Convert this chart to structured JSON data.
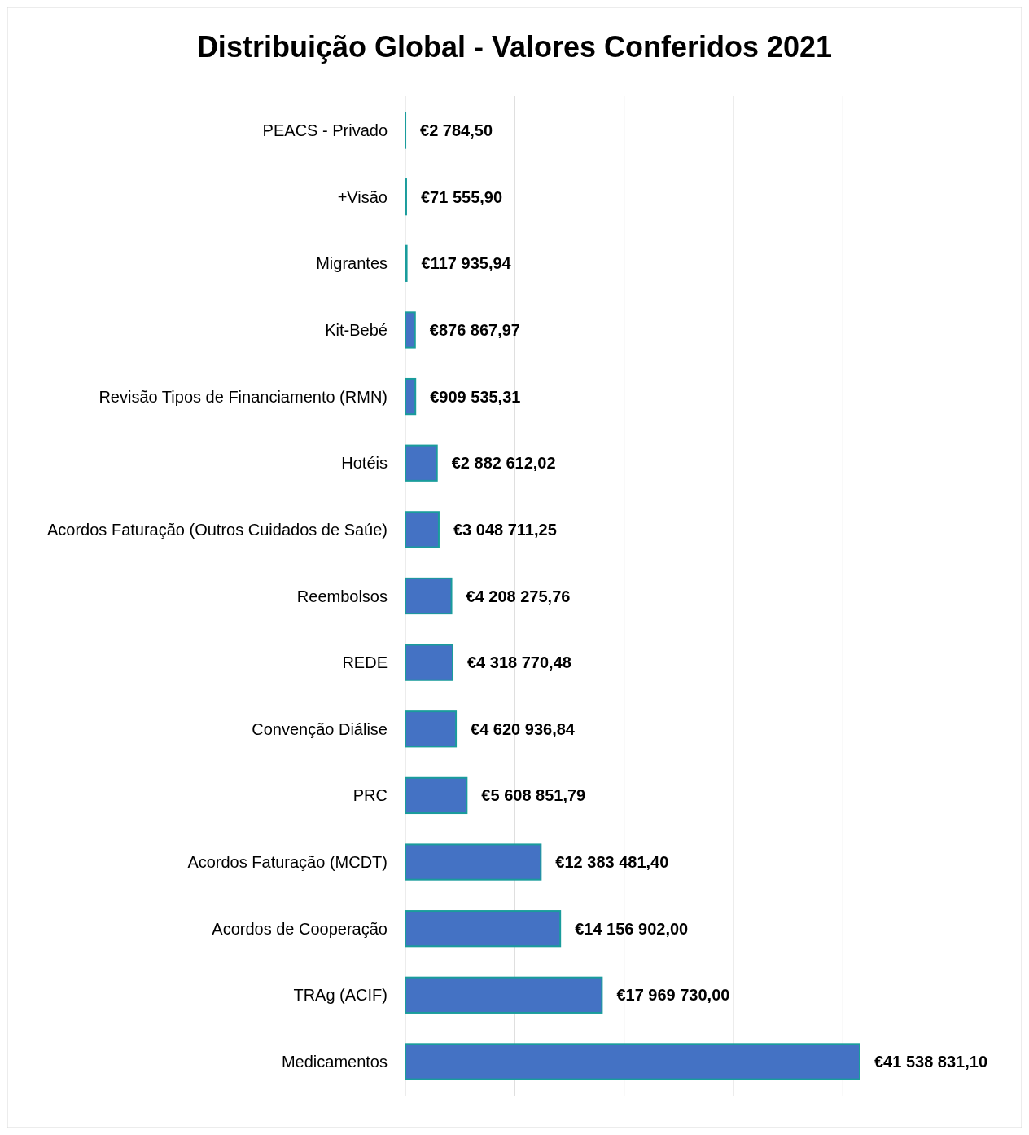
{
  "chart_data": {
    "type": "bar",
    "orientation": "horizontal",
    "title": "Distribuição Global - Valores Conferidos 2021",
    "categories": [
      "PEACS - Privado",
      "+Visão",
      "Migrantes",
      "Kit-Bebé",
      "Revisão Tipos de Financiamento (RMN)",
      "Hotéis",
      "Acordos Faturação (Outros Cuidados de Saúe)",
      "Reembolsos",
      "REDE",
      "Convenção Diálise",
      "PRC",
      "Acordos Faturação (MCDT)",
      "Acordos de Cooperação",
      "TRAg (ACIF)",
      "Medicamentos"
    ],
    "values": [
      2784.5,
      71555.9,
      117935.94,
      876867.97,
      909535.31,
      2882612.02,
      3048711.25,
      4208275.76,
      4318770.48,
      4620936.84,
      5608851.79,
      12383481.4,
      14156902,
      17969730,
      41538831.1
    ],
    "value_labels": [
      "€2 784,50",
      "€71 555,90",
      "€117 935,94",
      "€876 867,97",
      "€909 535,31",
      "€2 882 612,02",
      "€3 048 711,25",
      "€4 208 275,76",
      "€4 318 770,48",
      "€4 620 936,84",
      "€5 608 851,79",
      "€12 383 481,40",
      "€14 156 902,00",
      "€17 969 730,00",
      "€41 538 831,10"
    ],
    "color": "#4472c4",
    "xticks": [
      {
        "value": 0,
        "label": null
      },
      {
        "value": 10000000,
        "label": null
      },
      {
        "value": 20000000,
        "label": null
      },
      {
        "value": 30000000,
        "label": null
      },
      {
        "value": 40000000,
        "label": null
      }
    ],
    "grid": "x"
  }
}
